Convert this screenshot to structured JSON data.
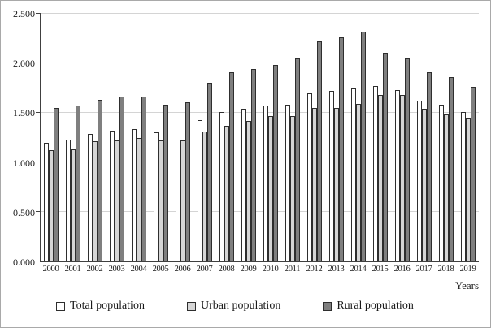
{
  "chart_data": {
    "type": "bar",
    "title": "",
    "xlabel": "Years",
    "ylabel": "",
    "ylim": [
      0,
      2.5
    ],
    "grid": true,
    "legend_position": "bottom",
    "ytick_labels": [
      "0.000",
      "0.500",
      "1.000",
      "1.500",
      "2.000",
      "2.500"
    ],
    "categories": [
      "2000",
      "2001",
      "2002",
      "2003",
      "2004",
      "2005",
      "2006",
      "2007",
      "2008",
      "2009",
      "2010",
      "2011",
      "2012",
      "2013",
      "2014",
      "2015",
      "2016",
      "2017",
      "2018",
      "2019"
    ],
    "series": [
      {
        "name": "Total population",
        "color": "#ffffff",
        "values": [
          1.2,
          1.23,
          1.29,
          1.32,
          1.34,
          1.3,
          1.31,
          1.43,
          1.51,
          1.54,
          1.57,
          1.58,
          1.7,
          1.72,
          1.75,
          1.77,
          1.73,
          1.62,
          1.58,
          1.51
        ]
      },
      {
        "name": "Urban population",
        "color": "#d6d6d6",
        "values": [
          1.12,
          1.13,
          1.21,
          1.22,
          1.25,
          1.22,
          1.22,
          1.31,
          1.37,
          1.42,
          1.47,
          1.47,
          1.55,
          1.55,
          1.59,
          1.68,
          1.68,
          1.54,
          1.48,
          1.45
        ]
      },
      {
        "name": "Rural population",
        "color": "#7f7f7f",
        "values": [
          1.55,
          1.57,
          1.63,
          1.66,
          1.66,
          1.58,
          1.61,
          1.8,
          1.91,
          1.94,
          1.98,
          2.05,
          2.22,
          2.26,
          2.32,
          2.11,
          2.05,
          1.91,
          1.86,
          1.76
        ]
      }
    ]
  }
}
